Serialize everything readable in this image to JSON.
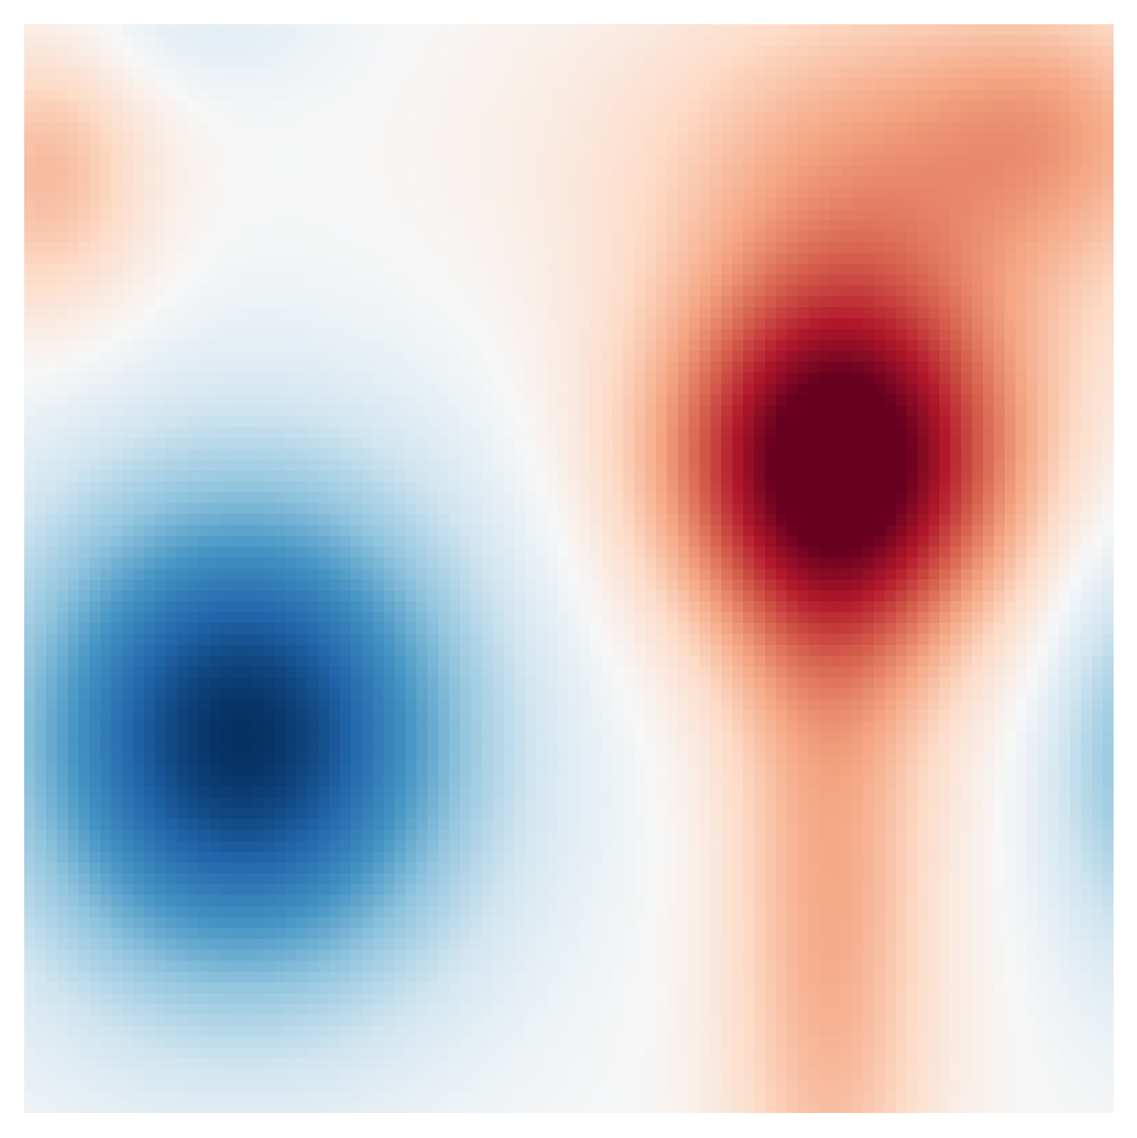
{
  "chart_data": {
    "type": "heatmap",
    "title": "",
    "xlabel": "",
    "ylabel": "",
    "axes_visible": false,
    "grid": false,
    "legend": "none",
    "colormap": "RdBu_r",
    "colormap_stops": [
      "#053061",
      "#2166ac",
      "#4393c3",
      "#92c5de",
      "#d1e5f0",
      "#f7f7f7",
      "#fddbc7",
      "#f4a582",
      "#d6604d",
      "#b2182b",
      "#67001f"
    ],
    "value_range": [
      -1,
      1
    ],
    "grid_size": [
      100,
      100
    ],
    "field_components": [
      {
        "kind": "peak",
        "center": [
          0.75,
          0.4
        ],
        "amplitude": 1.0,
        "sigma": [
          0.12,
          0.12
        ]
      },
      {
        "kind": "trough",
        "center": [
          0.2,
          0.655
        ],
        "amplitude": -1.0,
        "sigma": [
          0.15,
          0.17
        ]
      },
      {
        "kind": "ridge",
        "center": [
          0.74,
          0.8
        ],
        "amplitude": 0.38,
        "sigma": [
          0.07,
          0.3
        ]
      },
      {
        "kind": "ridge",
        "center": [
          0.82,
          0.12
        ],
        "amplitude": 0.35,
        "sigma": [
          0.2,
          0.12
        ]
      },
      {
        "kind": "ridge",
        "center": [
          0.94,
          0.09
        ],
        "amplitude": 0.15,
        "sigma": [
          0.08,
          0.08
        ]
      },
      {
        "kind": "peak",
        "center": [
          0.02,
          0.14
        ],
        "amplitude": 0.32,
        "sigma": [
          0.07,
          0.1
        ]
      },
      {
        "kind": "trough",
        "center": [
          0.15,
          0.0
        ],
        "amplitude": -0.12,
        "sigma": [
          0.1,
          0.05
        ]
      },
      {
        "kind": "trough",
        "center": [
          1.02,
          0.67
        ],
        "amplitude": -0.4,
        "sigma": [
          0.06,
          0.14
        ]
      }
    ]
  }
}
